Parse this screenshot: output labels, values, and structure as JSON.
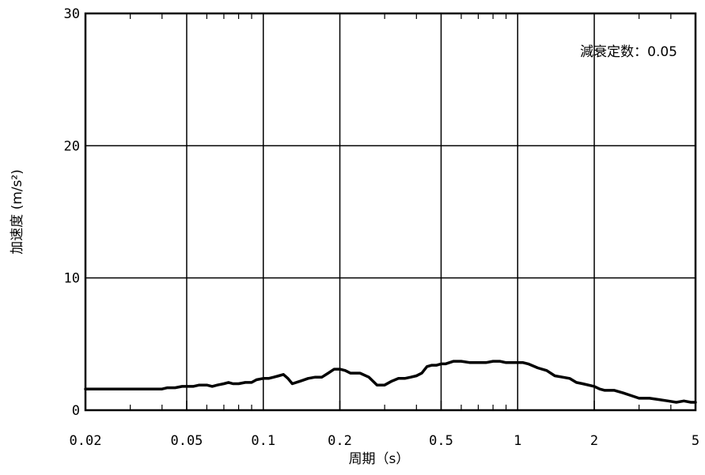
{
  "chart_data": {
    "type": "line",
    "title": "",
    "xlabel": "周期（s）",
    "ylabel": "加速度 (m/s²)",
    "x_scale": "log",
    "xlim": [
      0.02,
      5
    ],
    "ylim": [
      0,
      30
    ],
    "grid": true,
    "x_major_ticks": [
      {
        "value": 0.02,
        "label": "0.02"
      },
      {
        "value": 0.05,
        "label": "0.05"
      },
      {
        "value": 0.1,
        "label": "0.1"
      },
      {
        "value": 0.2,
        "label": "0.2"
      },
      {
        "value": 0.5,
        "label": "0.5"
      },
      {
        "value": 1,
        "label": "1"
      },
      {
        "value": 2,
        "label": "2"
      },
      {
        "value": 5,
        "label": "5"
      }
    ],
    "x_minor_ticks": [
      0.03,
      0.04,
      0.06,
      0.07,
      0.08,
      0.09,
      0.3,
      0.4,
      0.6,
      0.7,
      0.8,
      0.9,
      3,
      4
    ],
    "y_ticks": [
      {
        "value": 0,
        "label": "0"
      },
      {
        "value": 10,
        "label": "10"
      },
      {
        "value": 20,
        "label": "20"
      },
      {
        "value": 30,
        "label": "30"
      }
    ],
    "annotation": "減衰定数：0.05",
    "series": [
      {
        "color": "#000000",
        "x": [
          0.02,
          0.025,
          0.03,
          0.035,
          0.04,
          0.042,
          0.045,
          0.048,
          0.05,
          0.053,
          0.056,
          0.06,
          0.063,
          0.066,
          0.07,
          0.073,
          0.076,
          0.08,
          0.085,
          0.09,
          0.094,
          0.1,
          0.105,
          0.11,
          0.115,
          0.12,
          0.125,
          0.13,
          0.14,
          0.15,
          0.16,
          0.17,
          0.18,
          0.19,
          0.2,
          0.21,
          0.22,
          0.24,
          0.26,
          0.28,
          0.3,
          0.32,
          0.34,
          0.36,
          0.38,
          0.4,
          0.42,
          0.44,
          0.46,
          0.48,
          0.5,
          0.52,
          0.56,
          0.6,
          0.65,
          0.7,
          0.75,
          0.8,
          0.85,
          0.9,
          0.95,
          1.0,
          1.05,
          1.1,
          1.2,
          1.3,
          1.4,
          1.5,
          1.6,
          1.7,
          1.8,
          2.0,
          2.1,
          2.2,
          2.4,
          2.6,
          2.8,
          3.0,
          3.3,
          3.6,
          3.9,
          4.2,
          4.5,
          4.8,
          5.0
        ],
        "y": [
          1.6,
          1.6,
          1.6,
          1.6,
          1.6,
          1.7,
          1.7,
          1.8,
          1.8,
          1.8,
          1.9,
          1.9,
          1.8,
          1.9,
          2.0,
          2.1,
          2.0,
          2.0,
          2.1,
          2.1,
          2.3,
          2.4,
          2.4,
          2.5,
          2.6,
          2.7,
          2.4,
          2.0,
          2.2,
          2.4,
          2.5,
          2.5,
          2.8,
          3.1,
          3.1,
          3.0,
          2.8,
          2.8,
          2.5,
          1.9,
          1.9,
          2.2,
          2.4,
          2.4,
          2.5,
          2.6,
          2.8,
          3.3,
          3.4,
          3.4,
          3.5,
          3.5,
          3.7,
          3.7,
          3.6,
          3.6,
          3.6,
          3.7,
          3.7,
          3.6,
          3.6,
          3.6,
          3.6,
          3.5,
          3.2,
          3.0,
          2.6,
          2.5,
          2.4,
          2.1,
          2.0,
          1.8,
          1.6,
          1.5,
          1.5,
          1.3,
          1.1,
          0.9,
          0.9,
          0.8,
          0.7,
          0.6,
          0.7,
          0.6,
          0.6
        ]
      }
    ]
  }
}
